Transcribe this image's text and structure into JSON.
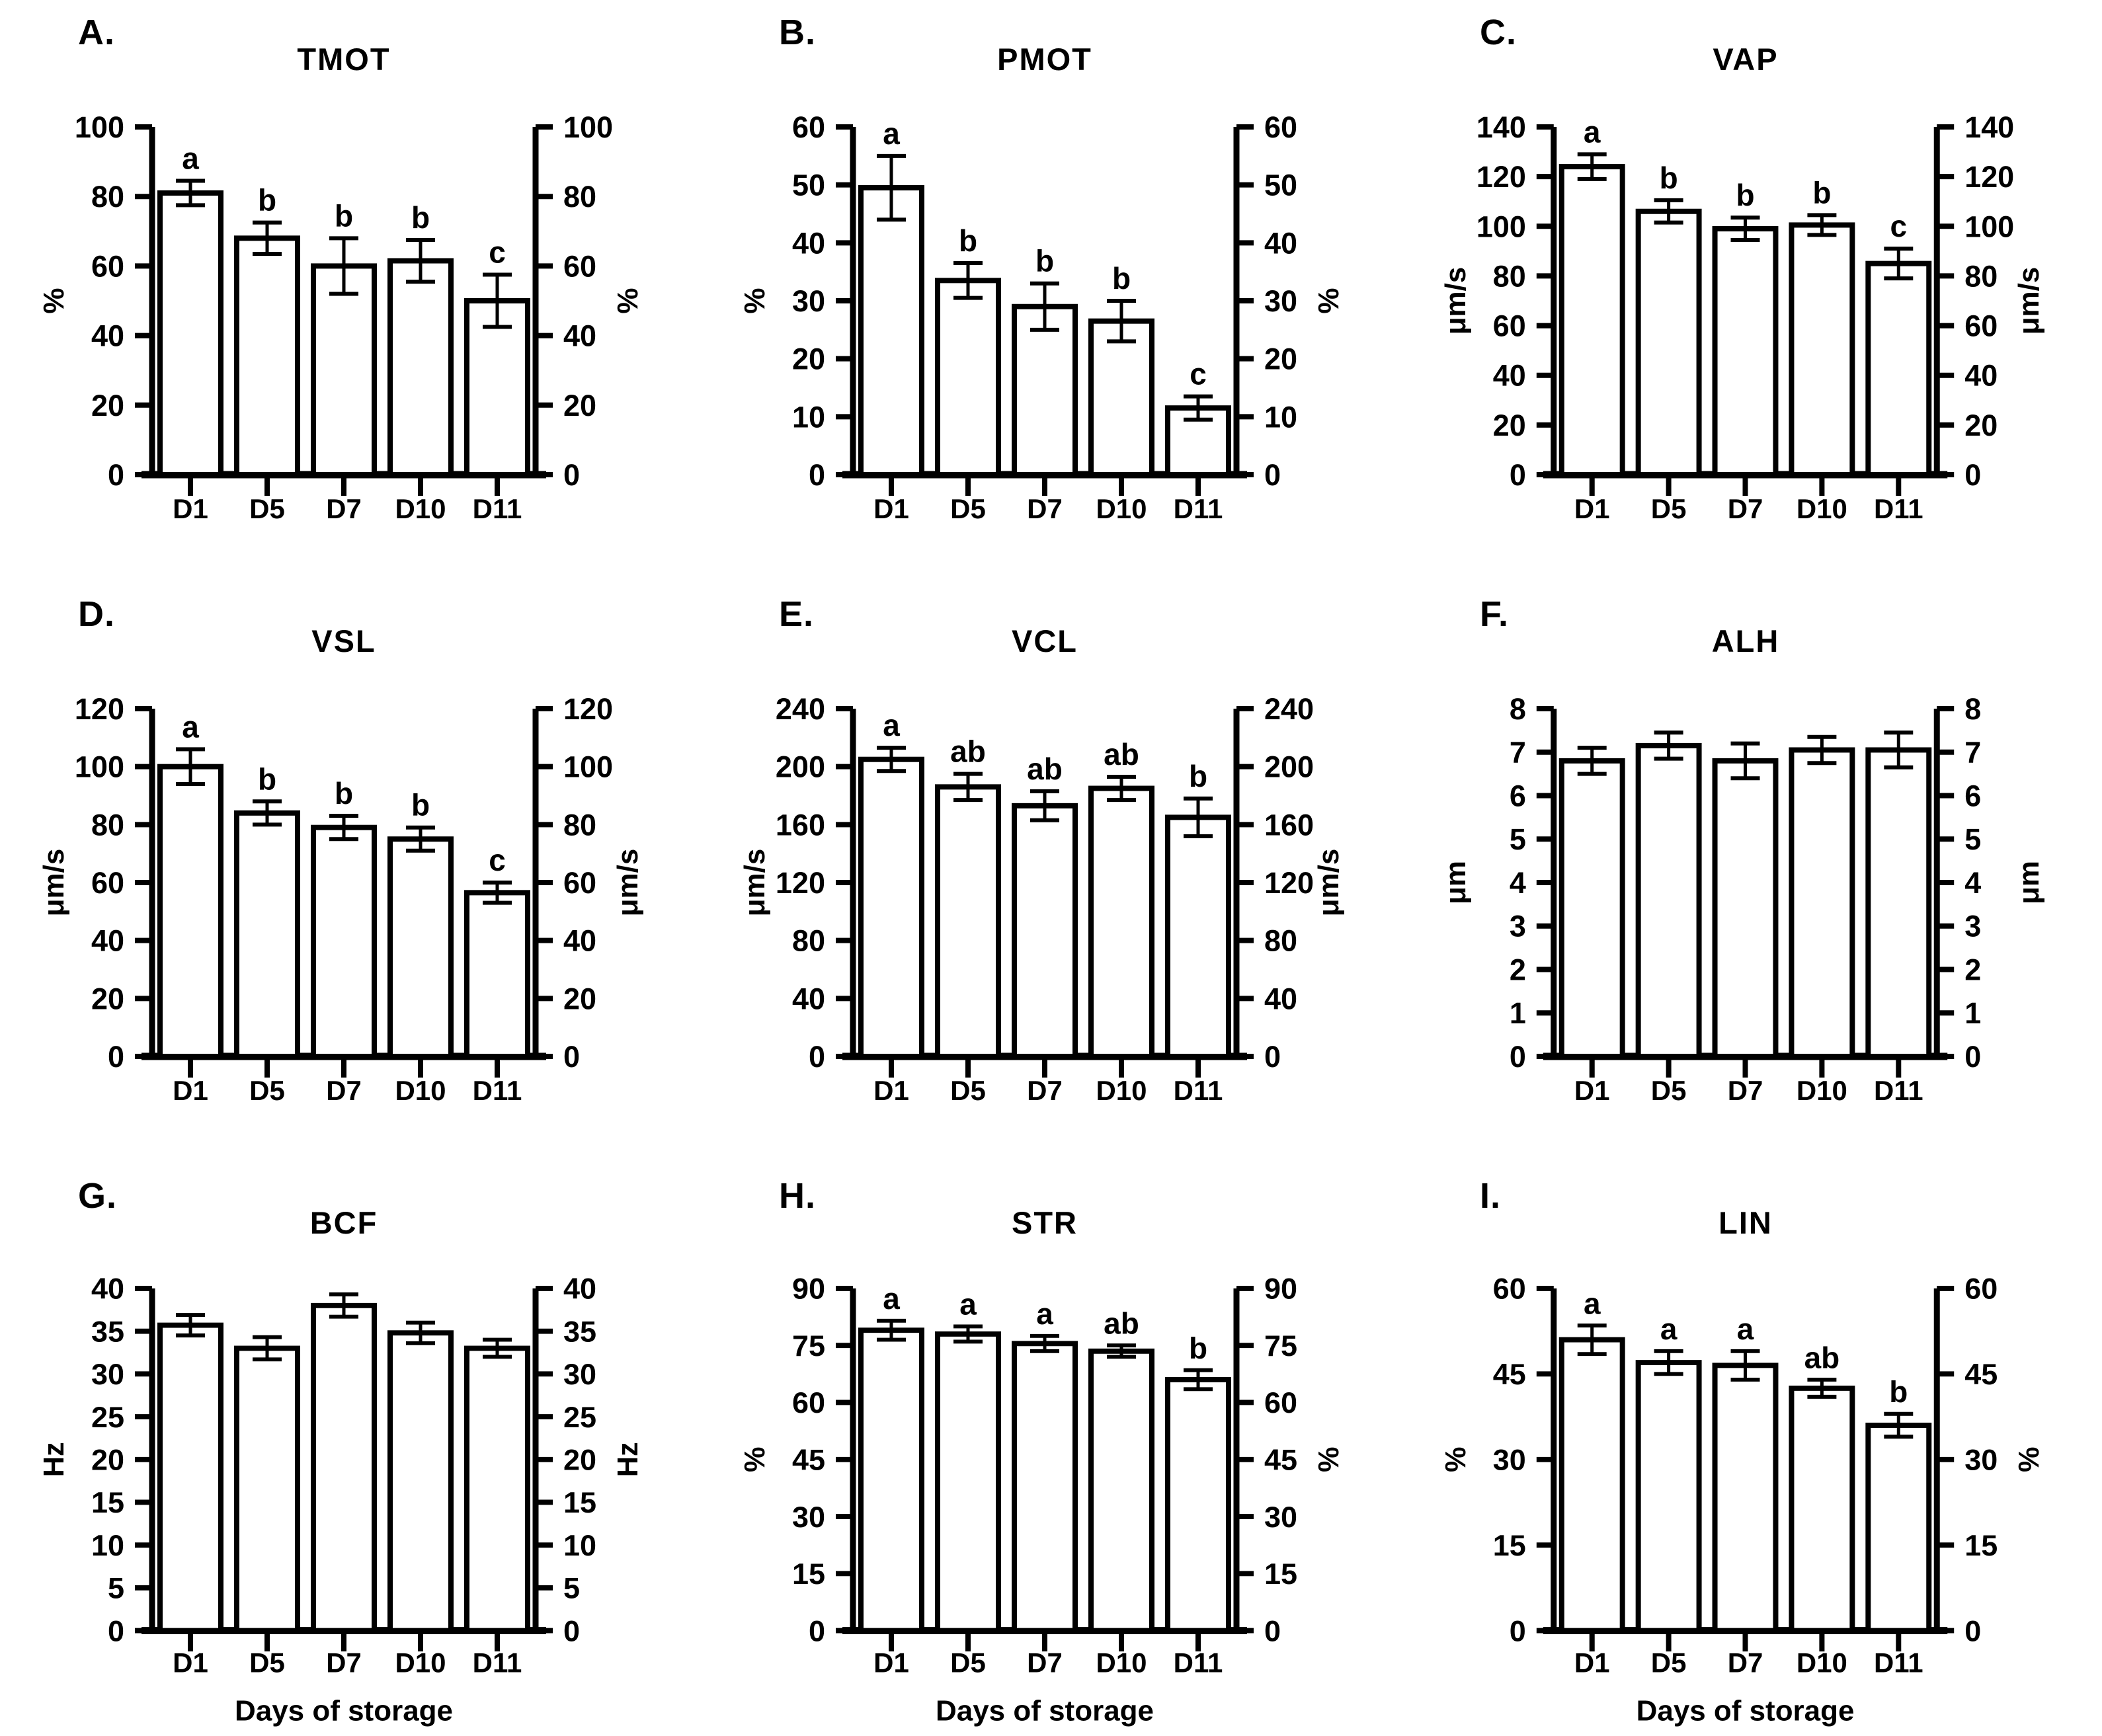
{
  "figure": {
    "x_axis_title": "Days of storage",
    "x_categories": [
      "D1",
      "D5",
      "D7",
      "D10",
      "D11"
    ],
    "colors": {
      "background": "#ffffff",
      "bar_fill": "#ffffff",
      "stroke": "#000000"
    }
  },
  "chart_data": [
    {
      "type": "bar",
      "panel_letter": "A.",
      "title": "TMOT",
      "ylabel": "%",
      "ylabel_right": "%",
      "xlabel": "",
      "ylim": [
        0,
        100
      ],
      "yticks": [
        0,
        20,
        40,
        60,
        80,
        100
      ],
      "categories": [
        "D1",
        "D5",
        "D7",
        "D10",
        "D11"
      ],
      "values": [
        81,
        68,
        60,
        61.5,
        50
      ],
      "errors": [
        3.5,
        4.5,
        8,
        6,
        7.5
      ],
      "sig_letters": [
        "a",
        "b",
        "b",
        "b",
        "c"
      ],
      "legend": "none",
      "grid": "off"
    },
    {
      "type": "bar",
      "panel_letter": "B.",
      "title": "PMOT",
      "ylabel": "%",
      "ylabel_right": "%",
      "xlabel": "",
      "ylim": [
        0,
        60
      ],
      "yticks": [
        0,
        10,
        20,
        30,
        40,
        50,
        60
      ],
      "categories": [
        "D1",
        "D5",
        "D7",
        "D10",
        "D11"
      ],
      "values": [
        49.5,
        33.5,
        29,
        26.5,
        11.5
      ],
      "errors": [
        5.5,
        3,
        4,
        3.5,
        2
      ],
      "sig_letters": [
        "a",
        "b",
        "b",
        "b",
        "c"
      ],
      "legend": "none",
      "grid": "off"
    },
    {
      "type": "bar",
      "panel_letter": "C.",
      "title": "VAP",
      "ylabel": "μm/s",
      "ylabel_right": "μm/s",
      "xlabel": "",
      "ylim": [
        0,
        140
      ],
      "yticks": [
        0,
        20,
        40,
        60,
        80,
        100,
        120,
        140
      ],
      "categories": [
        "D1",
        "D5",
        "D7",
        "D10",
        "D11"
      ],
      "values": [
        124,
        106,
        99,
        100.5,
        85
      ],
      "errors": [
        5,
        4.5,
        4.5,
        4,
        6
      ],
      "sig_letters": [
        "a",
        "b",
        "b",
        "b",
        "c"
      ],
      "legend": "none",
      "grid": "off"
    },
    {
      "type": "bar",
      "panel_letter": "D.",
      "title": "VSL",
      "ylabel": "μm/s",
      "ylabel_right": "μm/s",
      "xlabel": "",
      "ylim": [
        0,
        120
      ],
      "yticks": [
        0,
        20,
        40,
        60,
        80,
        100,
        120
      ],
      "categories": [
        "D1",
        "D5",
        "D7",
        "D10",
        "D11"
      ],
      "values": [
        100,
        84,
        79,
        75,
        56.5
      ],
      "errors": [
        6,
        4,
        4,
        4,
        3.5
      ],
      "sig_letters": [
        "a",
        "b",
        "b",
        "b",
        "c"
      ],
      "legend": "none",
      "grid": "off"
    },
    {
      "type": "bar",
      "panel_letter": "E.",
      "title": "VCL",
      "ylabel": "μm/s",
      "ylabel_right": "μm/s",
      "xlabel": "",
      "ylim": [
        0,
        240
      ],
      "yticks": [
        0,
        40,
        80,
        120,
        160,
        200,
        240
      ],
      "categories": [
        "D1",
        "D5",
        "D7",
        "D10",
        "D11"
      ],
      "values": [
        205,
        186,
        173,
        185,
        165
      ],
      "errors": [
        8,
        9,
        10,
        8,
        13
      ],
      "sig_letters": [
        "a",
        "ab",
        "ab",
        "ab",
        "b"
      ],
      "legend": "none",
      "grid": "off"
    },
    {
      "type": "bar",
      "panel_letter": "F.",
      "title": "ALH",
      "ylabel": "μm",
      "ylabel_right": "μm",
      "xlabel": "",
      "ylim": [
        0,
        8
      ],
      "yticks": [
        0,
        1,
        2,
        3,
        4,
        5,
        6,
        7,
        8
      ],
      "categories": [
        "D1",
        "D5",
        "D7",
        "D10",
        "D11"
      ],
      "values": [
        6.8,
        7.15,
        6.8,
        7.05,
        7.05
      ],
      "errors": [
        0.3,
        0.3,
        0.4,
        0.3,
        0.4
      ],
      "sig_letters": [
        "",
        "",
        "",
        "",
        ""
      ],
      "legend": "none",
      "grid": "off"
    },
    {
      "type": "bar",
      "panel_letter": "G.",
      "title": "BCF",
      "ylabel": "Hz",
      "ylabel_right": "Hz",
      "xlabel": "Days of storage",
      "ylim": [
        0,
        40
      ],
      "yticks": [
        0,
        5,
        10,
        15,
        20,
        25,
        30,
        35,
        40
      ],
      "categories": [
        "D1",
        "D5",
        "D7",
        "D10",
        "D11"
      ],
      "values": [
        35.7,
        33,
        38,
        34.8,
        33
      ],
      "errors": [
        1.2,
        1.3,
        1.3,
        1.2,
        1
      ],
      "sig_letters": [
        "",
        "",
        "",
        "",
        ""
      ],
      "legend": "none",
      "grid": "off"
    },
    {
      "type": "bar",
      "panel_letter": "H.",
      "title": "STR",
      "ylabel": "%",
      "ylabel_right": "%",
      "xlabel": "Days of storage",
      "ylim": [
        0,
        90
      ],
      "yticks": [
        0,
        15,
        30,
        45,
        60,
        75,
        90
      ],
      "categories": [
        "D1",
        "D5",
        "D7",
        "D10",
        "D11"
      ],
      "values": [
        79,
        78,
        75.5,
        73.5,
        66
      ],
      "errors": [
        2.5,
        2,
        2,
        1.5,
        2.5
      ],
      "sig_letters": [
        "a",
        "a",
        "a",
        "ab",
        "b"
      ],
      "legend": "none",
      "grid": "off"
    },
    {
      "type": "bar",
      "panel_letter": "I.",
      "title": "LIN",
      "ylabel": "%",
      "ylabel_right": "%",
      "xlabel": "Days of storage",
      "ylim": [
        0,
        60
      ],
      "yticks": [
        0,
        15,
        30,
        45,
        60
      ],
      "categories": [
        "D1",
        "D5",
        "D7",
        "D10",
        "D11"
      ],
      "values": [
        51,
        47,
        46.5,
        42.5,
        36
      ],
      "errors": [
        2.5,
        2,
        2.5,
        1.5,
        2
      ],
      "sig_letters": [
        "a",
        "a",
        "a",
        "ab",
        "b"
      ],
      "legend": "none",
      "grid": "off"
    }
  ]
}
